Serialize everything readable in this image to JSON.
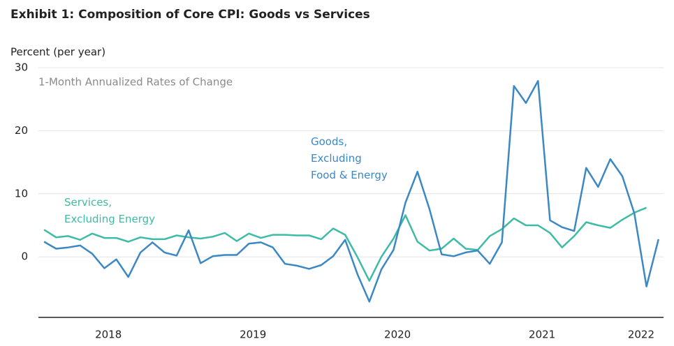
{
  "chart_data": {
    "type": "line",
    "title": "Exhibit 1: Composition of Core CPI: Goods vs Services",
    "ylabel": "Percent (per year)",
    "subtitle": "1-Month Annualized Rates of Change",
    "x": [
      2018.125,
      2018.208,
      2018.292,
      2018.375,
      2018.458,
      2018.542,
      2018.625,
      2018.708,
      2018.792,
      2018.875,
      2018.958,
      2019.042,
      2019.125,
      2019.208,
      2019.292,
      2019.375,
      2019.458,
      2019.542,
      2019.625,
      2019.708,
      2019.792,
      2019.875,
      2019.958,
      2020.042,
      2020.125,
      2020.208,
      2020.292,
      2020.375,
      2020.458,
      2020.542,
      2020.625,
      2020.708,
      2020.792,
      2020.875,
      2020.958,
      2021.042,
      2021.125,
      2021.208,
      2021.292,
      2021.375,
      2021.458,
      2021.542,
      2021.625,
      2021.708,
      2021.792,
      2021.875,
      2021.958,
      2022.042,
      2022.125,
      2022.208,
      2022.292,
      2022.375
    ],
    "series": [
      {
        "name": "Goods,\nExcluding\nFood & Energy",
        "color": "#3b88c4",
        "values": [
          2.4,
          1.3,
          1.5,
          1.8,
          0.5,
          -1.8,
          -0.4,
          -3.2,
          0.7,
          2.3,
          0.7,
          0.2,
          4.2,
          -1.0,
          0.1,
          0.3,
          0.3,
          2.1,
          2.3,
          1.5,
          -1.1,
          -1.4,
          -1.9,
          -1.3,
          0.1,
          2.7,
          -2.7,
          -7.1,
          -2.0,
          1.1,
          8.6,
          13.5,
          7.5,
          0.4,
          0.1,
          0.7,
          1.0,
          -1.1,
          2.3,
          27.1,
          24.4,
          27.9,
          5.8,
          4.7,
          4.1,
          14.1,
          11.1,
          15.5,
          12.8,
          6.9,
          -4.7,
          2.8
        ]
      },
      {
        "name": "Services,\nExcluding Energy",
        "color": "#3dbca5",
        "values": [
          4.3,
          3.1,
          3.3,
          2.7,
          3.7,
          3.0,
          3.0,
          2.4,
          3.1,
          2.8,
          2.8,
          3.4,
          3.1,
          2.9,
          3.2,
          3.8,
          2.5,
          3.7,
          3.0,
          3.5,
          3.5,
          3.4,
          3.4,
          2.8,
          4.5,
          3.5,
          0,
          -3.8,
          0,
          2.9,
          6.6,
          2.4,
          1.0,
          1.3,
          2.9,
          1.3,
          1.1,
          3.3,
          4.4,
          6.1,
          5.0,
          5.0,
          3.8,
          1.5,
          3.3,
          5.5,
          5.0,
          4.6,
          5.9,
          7.0,
          7.8,
          null
        ]
      }
    ],
    "xlim": [
      2018.086,
      2022.41
    ],
    "xticks": [
      {
        "value": 2018.57,
        "label": "2018"
      },
      {
        "value": 2019.57,
        "label": "2019"
      },
      {
        "value": 2020.57,
        "label": "2020"
      },
      {
        "value": 2021.57,
        "label": "2021"
      },
      {
        "value": 2022.255,
        "label": "2022"
      }
    ],
    "ylim": [
      -9.6,
      30
    ],
    "yticks": [
      0,
      10,
      20,
      30
    ],
    "grid": true
  }
}
